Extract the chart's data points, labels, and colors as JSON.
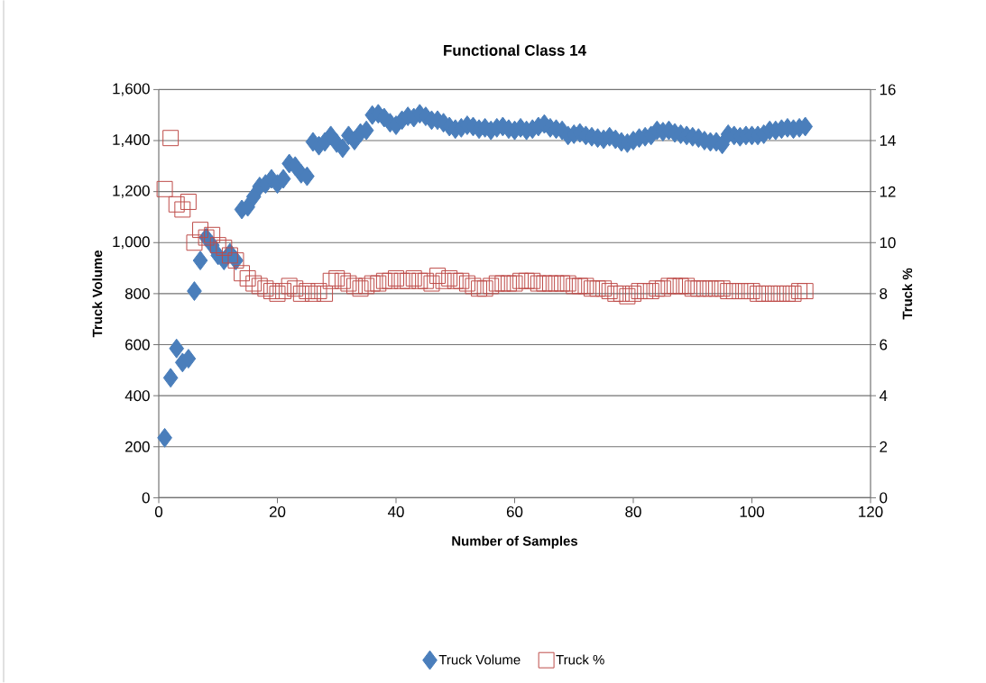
{
  "chart_data": {
    "type": "scatter",
    "title": "Functional Class 14",
    "xlabel": "Number of Samples",
    "ylabel": "Truck Volume",
    "y2label": "Truck %",
    "x": [
      1,
      2,
      3,
      4,
      5,
      6,
      7,
      8,
      9,
      10,
      11,
      12,
      13,
      14,
      15,
      16,
      17,
      18,
      19,
      20,
      21,
      22,
      23,
      24,
      25,
      26,
      27,
      28,
      29,
      30,
      31,
      32,
      33,
      34,
      35,
      36,
      37,
      38,
      39,
      40,
      41,
      42,
      43,
      44,
      45,
      46,
      47,
      48,
      49,
      50,
      51,
      52,
      53,
      54,
      55,
      56,
      57,
      58,
      59,
      60,
      61,
      62,
      63,
      64,
      65,
      66,
      67,
      68,
      69,
      70,
      71,
      72,
      73,
      74,
      75,
      76,
      77,
      78,
      79,
      80,
      81,
      82,
      83,
      84,
      85,
      86,
      87,
      88,
      89,
      90,
      91,
      92,
      93,
      94,
      95,
      96,
      97,
      98,
      99,
      100,
      101,
      102,
      103,
      104,
      105,
      106,
      107,
      108,
      109
    ],
    "series": [
      {
        "name": "Truck Volume",
        "color": "#4a7ebb",
        "marker": "diamond",
        "values": [
          235,
          470,
          585,
          530,
          545,
          810,
          930,
          1020,
          990,
          950,
          930,
          960,
          930,
          1130,
          1140,
          1180,
          1220,
          1230,
          1250,
          1230,
          1250,
          1310,
          1300,
          1270,
          1260,
          1395,
          1380,
          1395,
          1420,
          1390,
          1370,
          1420,
          1400,
          1430,
          1440,
          1500,
          1505,
          1490,
          1470,
          1460,
          1480,
          1495,
          1490,
          1505,
          1495,
          1480,
          1480,
          1470,
          1455,
          1445,
          1450,
          1460,
          1455,
          1445,
          1450,
          1440,
          1450,
          1455,
          1445,
          1440,
          1450,
          1440,
          1445,
          1455,
          1465,
          1450,
          1445,
          1440,
          1420,
          1425,
          1430,
          1420,
          1415,
          1410,
          1405,
          1415,
          1405,
          1395,
          1390,
          1400,
          1410,
          1415,
          1420,
          1440,
          1435,
          1440,
          1430,
          1425,
          1420,
          1415,
          1410,
          1400,
          1395,
          1395,
          1385,
          1425,
          1420,
          1415,
          1420,
          1420,
          1420,
          1425,
          1440,
          1440,
          1445,
          1450,
          1445,
          1450,
          1455
        ]
      },
      {
        "name": "Truck %",
        "color": "#be4b48",
        "marker": "square",
        "axis": "y2",
        "values": [
          12.1,
          14.1,
          11.5,
          11.3,
          11.6,
          10.0,
          10.5,
          10.2,
          10.3,
          9.9,
          9.8,
          9.5,
          9.3,
          8.8,
          8.6,
          8.4,
          8.3,
          8.2,
          8.1,
          8.0,
          8.1,
          8.3,
          8.2,
          8.0,
          8.1,
          8.0,
          8.1,
          8.0,
          8.5,
          8.6,
          8.5,
          8.4,
          8.3,
          8.2,
          8.3,
          8.4,
          8.4,
          8.5,
          8.5,
          8.6,
          8.5,
          8.5,
          8.6,
          8.5,
          8.5,
          8.4,
          8.7,
          8.5,
          8.6,
          8.5,
          8.5,
          8.4,
          8.3,
          8.2,
          8.2,
          8.3,
          8.4,
          8.4,
          8.4,
          8.4,
          8.5,
          8.5,
          8.5,
          8.4,
          8.4,
          8.4,
          8.4,
          8.4,
          8.4,
          8.3,
          8.3,
          8.3,
          8.2,
          8.2,
          8.2,
          8.1,
          8.0,
          8.0,
          7.9,
          8.0,
          8.1,
          8.1,
          8.1,
          8.2,
          8.2,
          8.3,
          8.3,
          8.3,
          8.3,
          8.2,
          8.2,
          8.2,
          8.2,
          8.2,
          8.2,
          8.1,
          8.1,
          8.1,
          8.1,
          8.1,
          8.0,
          8.0,
          8.0,
          8.0,
          8.0,
          8.0,
          8.0,
          8.1,
          8.1
        ]
      }
    ],
    "xlim": [
      0,
      120
    ],
    "xticks": [
      0,
      20,
      40,
      60,
      80,
      100,
      120
    ],
    "ylim": [
      0,
      1600
    ],
    "yticks": [
      0,
      200,
      400,
      600,
      800,
      {
        "value": 1000,
        "label": "1,000"
      },
      {
        "value": 1200,
        "label": "1,200"
      },
      {
        "value": 1400,
        "label": "1,400"
      },
      {
        "value": 1600,
        "label": "1,600"
      }
    ],
    "y2lim": [
      0,
      16
    ],
    "y2ticks": [
      0,
      2,
      4,
      6,
      8,
      10,
      12,
      14,
      16
    ],
    "grid": "y",
    "legend": "bottom"
  }
}
